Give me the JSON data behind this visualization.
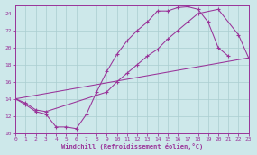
{
  "xlabel": "Windchill (Refroidissement éolien,°C)",
  "bg_color": "#cde8ea",
  "grid_color": "#aacdd0",
  "line_color": "#993399",
  "xlim": [
    0,
    23
  ],
  "ylim": [
    10,
    25
  ],
  "xticks": [
    0,
    1,
    2,
    3,
    4,
    5,
    6,
    7,
    8,
    9,
    10,
    11,
    12,
    13,
    14,
    15,
    16,
    17,
    18,
    19,
    20,
    21,
    22,
    23
  ],
  "yticks": [
    10,
    12,
    14,
    16,
    18,
    20,
    22,
    24
  ],
  "series1_x": [
    0,
    1,
    2,
    3,
    4,
    5,
    6,
    7,
    8,
    9,
    10,
    11,
    12,
    13,
    14,
    15,
    16,
    17,
    18,
    19,
    20,
    21
  ],
  "series1_y": [
    14.0,
    13.3,
    12.5,
    12.2,
    10.7,
    10.7,
    10.5,
    12.2,
    14.8,
    17.2,
    19.2,
    20.8,
    22.0,
    23.0,
    24.3,
    24.3,
    24.7,
    24.8,
    24.5,
    23.0,
    20.0,
    19.0
  ],
  "series2_x": [
    0,
    1,
    2,
    3,
    9,
    10,
    11,
    12,
    13,
    14,
    15,
    16,
    17,
    18,
    20,
    22,
    23
  ],
  "series2_y": [
    14.0,
    13.5,
    12.7,
    12.5,
    14.8,
    16.0,
    17.0,
    18.0,
    19.0,
    19.8,
    21.0,
    22.0,
    23.0,
    24.0,
    24.5,
    21.5,
    18.8
  ],
  "series3_x": [
    0,
    23
  ],
  "series3_y": [
    14.0,
    18.8
  ]
}
